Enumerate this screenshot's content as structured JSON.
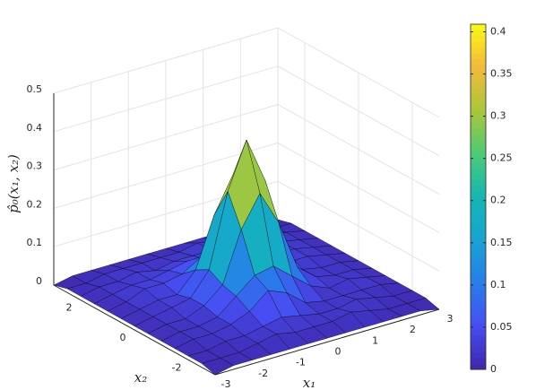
{
  "chart_data": {
    "type": "surface",
    "x_label": "x₁",
    "y_label": "x₂",
    "z_label": "p̂₀(x₁, x₂)",
    "x": [
      -3,
      -2.5,
      -2,
      -1.5,
      -1,
      -0.5,
      0,
      0.5,
      1,
      1.5,
      2,
      2.5,
      3
    ],
    "y": [
      -3,
      -2.5,
      -2,
      -1.5,
      -1,
      -0.5,
      0,
      0.5,
      1,
      1.5,
      2,
      2.5,
      3
    ],
    "z": [
      [
        0,
        0.01,
        0.01,
        0.01,
        0.01,
        0.01,
        0.01,
        0.01,
        0.01,
        0.01,
        0.01,
        0.01,
        0
      ],
      [
        0.01,
        0.01,
        0.01,
        0.02,
        0.03,
        0.02,
        0.02,
        0.02,
        0.03,
        0.02,
        0.01,
        0.01,
        0.01
      ],
      [
        0.01,
        0.01,
        0.02,
        0.02,
        0.03,
        0.04,
        0.03,
        0.02,
        0.02,
        0.03,
        0.02,
        0.01,
        0.01
      ],
      [
        0.01,
        0.02,
        0.02,
        0.03,
        0.05,
        0.09,
        0.07,
        0.03,
        0.02,
        0.02,
        0.02,
        0.02,
        0.01
      ],
      [
        0.01,
        0.02,
        0.02,
        0.03,
        0.07,
        0.11,
        0.12,
        0.08,
        0.04,
        0.02,
        0.03,
        0.02,
        0.01
      ],
      [
        0.01,
        0.02,
        0.02,
        0.04,
        0.08,
        0.21,
        0.29,
        0.2,
        0.07,
        0.03,
        0.02,
        0.02,
        0.01
      ],
      [
        0.01,
        0.02,
        0.03,
        0.04,
        0.1,
        0.29,
        0.41,
        0.29,
        0.1,
        0.03,
        0.02,
        0.02,
        0.01
      ],
      [
        0.01,
        0.02,
        0.03,
        0.03,
        0.08,
        0.21,
        0.3,
        0.21,
        0.08,
        0.03,
        0.03,
        0.02,
        0.01
      ],
      [
        0.01,
        0.02,
        0.04,
        0.04,
        0.05,
        0.08,
        0.11,
        0.08,
        0.04,
        0.03,
        0.03,
        0.02,
        0.01
      ],
      [
        0.01,
        0.02,
        0.03,
        0.03,
        0.04,
        0.05,
        0.04,
        0.05,
        0.04,
        0.02,
        0.03,
        0.02,
        0.01
      ],
      [
        0.01,
        0.02,
        0.02,
        0.03,
        0.02,
        0.03,
        0.03,
        0.03,
        0.03,
        0.02,
        0.02,
        0.02,
        0.01
      ],
      [
        0.01,
        0.01,
        0.02,
        0.02,
        0.02,
        0.02,
        0.02,
        0.03,
        0.02,
        0.02,
        0.02,
        0.01,
        0.01
      ],
      [
        0,
        0.01,
        0.01,
        0.01,
        0.01,
        0.01,
        0.01,
        0.01,
        0.01,
        0.01,
        0.01,
        0.01,
        0
      ]
    ],
    "xlim": [
      -3,
      3
    ],
    "ylim": [
      -3,
      3
    ],
    "zlim": [
      0,
      0.5
    ],
    "xticks": [
      -3,
      -2,
      -1,
      0,
      1,
      2,
      3
    ],
    "yticks": [
      -2,
      0,
      2
    ],
    "zticks": [
      0,
      0.1,
      0.2,
      0.3,
      0.4,
      0.5
    ],
    "grid": true,
    "colormap": "parula",
    "edge_color": "#000000",
    "colorbar": {
      "clim": [
        0,
        0.409
      ],
      "ticks": [
        0,
        0.05,
        0.1,
        0.15,
        0.2,
        0.25,
        0.3,
        0.35,
        0.4
      ]
    }
  }
}
